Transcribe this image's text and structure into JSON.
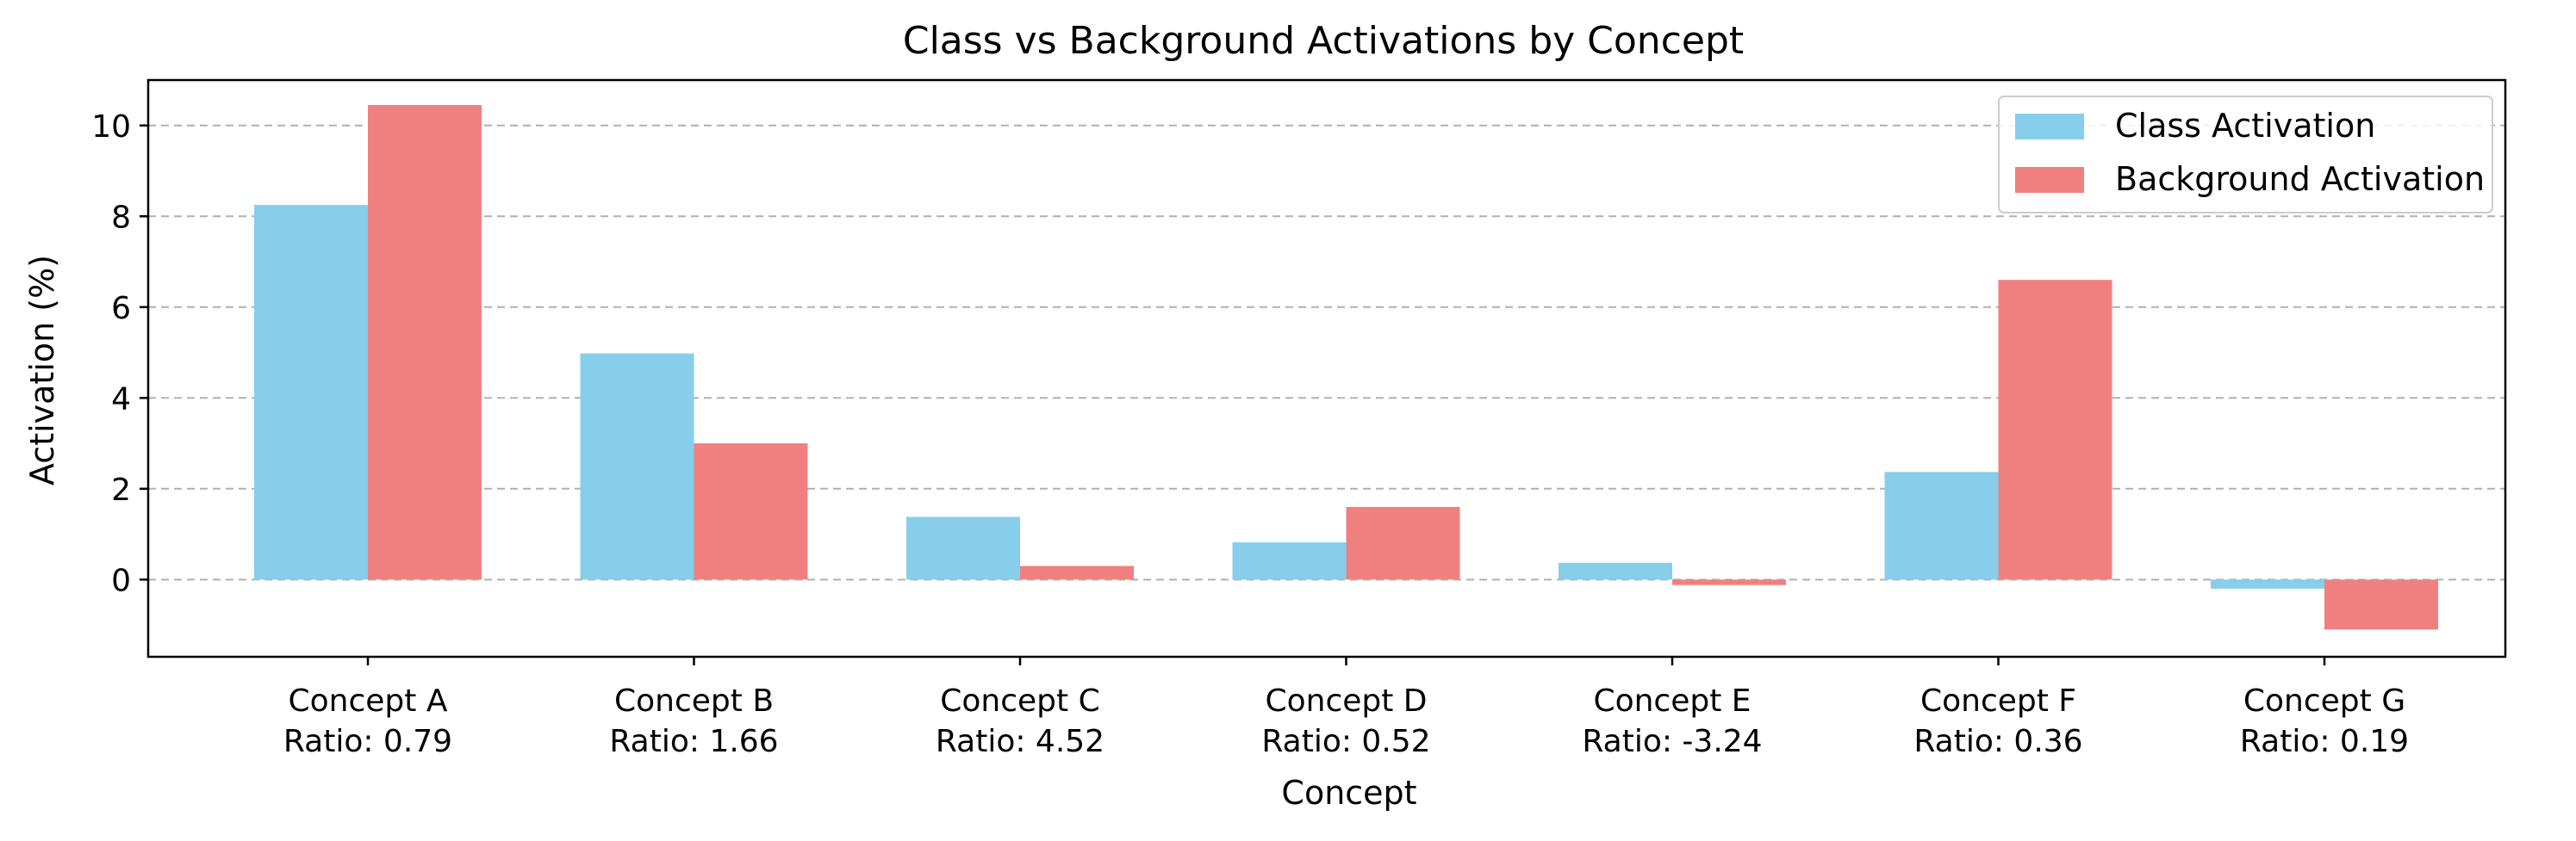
{
  "chart_data": {
    "type": "bar",
    "title": "Class vs Background Activations by Concept",
    "xlabel": "Concept",
    "ylabel": "Activation (%)",
    "categories": [
      "Concept A",
      "Concept B",
      "Concept C",
      "Concept D",
      "Concept E",
      "Concept F",
      "Concept G"
    ],
    "ratio_labels": [
      "Ratio: 0.79",
      "Ratio: 1.66",
      "Ratio: 4.52",
      "Ratio: 0.52",
      "Ratio: -3.24",
      "Ratio: 0.36",
      "Ratio: 0.19"
    ],
    "series": [
      {
        "name": "Class Activation",
        "color": "#87CEEB",
        "values": [
          8.25,
          4.98,
          1.38,
          0.82,
          0.37,
          2.37,
          -0.2
        ]
      },
      {
        "name": "Background Activation",
        "color": "#F08080",
        "values": [
          10.45,
          3.0,
          0.3,
          1.6,
          -0.12,
          6.6,
          -1.1
        ]
      }
    ],
    "yticks": [
      0,
      2,
      4,
      6,
      8,
      10
    ],
    "ylim": [
      -1.7,
      11.0
    ],
    "grid": "y, dashed",
    "legend": "top-right"
  }
}
